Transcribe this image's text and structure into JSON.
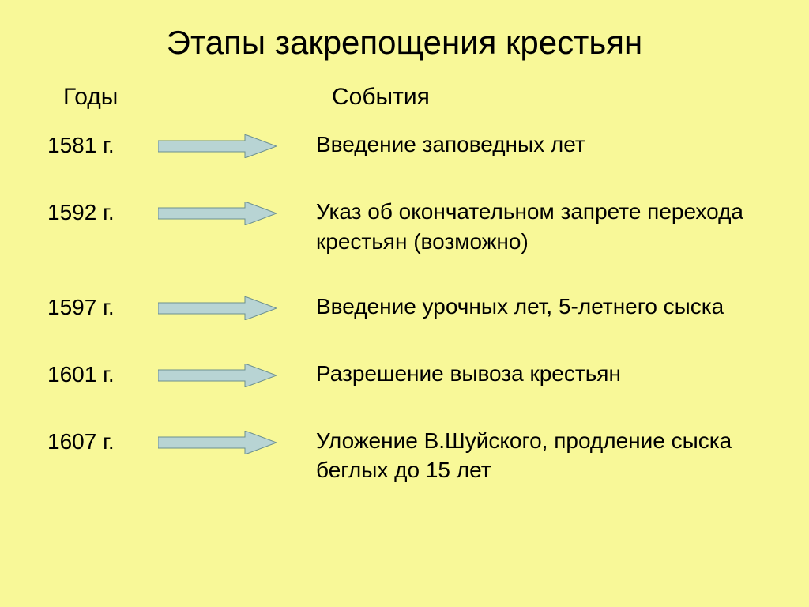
{
  "background_color": "#f8f898",
  "text_color": "#000000",
  "title": {
    "text": "Этапы закрепощения крестьян",
    "fontsize": 42
  },
  "headers": {
    "years": "Годы",
    "events": "События",
    "fontsize": 30
  },
  "rows_fontsize": 28,
  "arrow": {
    "fill": "#b8d4d4",
    "stroke": "#6b8f8f",
    "width": 150,
    "height": 30
  },
  "rows": [
    {
      "year": "1581 г.",
      "event": "Введение заповедных лет"
    },
    {
      "year": "1592 г.",
      "event": "Указ об окончательном запрете перехода крестьян (возможно)"
    },
    {
      "year": "1597 г.",
      "event": "Введение урочных лет, 5-летнего сыска"
    },
    {
      "year": "1601 г.",
      "event": "Разрешение вывоза крестьян"
    },
    {
      "year": "1607 г.",
      "event": "Уложение В.Шуйского, продление сыска беглых до 15 лет"
    }
  ]
}
